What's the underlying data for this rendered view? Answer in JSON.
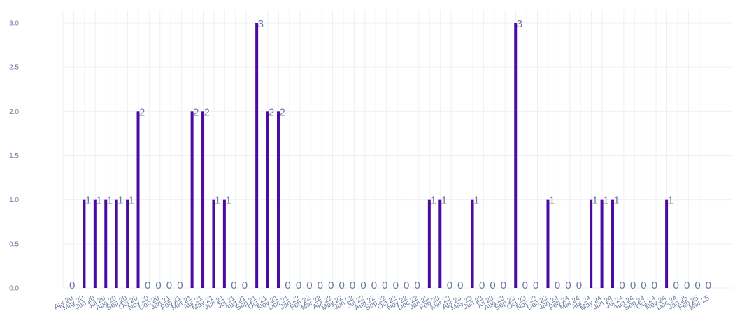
{
  "colors": {
    "bar": "#4b0aa1",
    "text": "#6b7aa1",
    "grid": "#eef0f5"
  },
  "chart_data": {
    "type": "bar",
    "grid": true,
    "legend": "none",
    "ylim": [
      0,
      3
    ],
    "yticks": [
      "0.0",
      "0.5",
      "1.0",
      "1.5",
      "2.0",
      "2.5",
      "3.0"
    ],
    "categories": [
      "Apr 20",
      "May 20",
      "Jun 20",
      "Jul 20",
      "Aug 20",
      "Sep 20",
      "Oct 20",
      "Nov 20",
      "Dec 20",
      "Jan 21",
      "Feb 21",
      "Mar 21",
      "Apr 21",
      "May 21",
      "Jun 21",
      "Jul 21",
      "Aug 21",
      "Sep 21",
      "Oct 21",
      "Nov 21",
      "Dec 21",
      "Jan 22",
      "Feb 22",
      "Mar 22",
      "Apr 22",
      "May 22",
      "Jun 22",
      "Jul 22",
      "Aug 22",
      "Sep 22",
      "Oct 22",
      "Nov 22",
      "Dec 22",
      "Jan 23",
      "Feb 23",
      "Mar 23",
      "Apr 23",
      "May 23",
      "Jun 23",
      "Jul 23",
      "Aug 23",
      "Sep 23",
      "Oct 23",
      "Nov 23",
      "Dec 23",
      "Jan 24",
      "Feb 24",
      "Mar 24",
      "Apr 24",
      "May 24",
      "Jun 24",
      "Jul 24",
      "Aug 24",
      "Sep 24",
      "Oct 24",
      "Nov 24",
      "Dec 24",
      "Jan 25",
      "Feb 25",
      "Mar 25"
    ],
    "values": [
      0,
      1,
      1,
      1,
      1,
      1,
      2,
      0,
      0,
      0,
      0,
      2,
      2,
      1,
      1,
      0,
      0,
      3,
      2,
      2,
      0,
      0,
      0,
      0,
      0,
      0,
      0,
      0,
      0,
      0,
      0,
      0,
      0,
      1,
      1,
      0,
      0,
      1,
      0,
      0,
      0,
      3,
      0,
      0,
      1,
      0,
      0,
      0,
      1,
      1,
      1,
      0,
      0,
      0,
      0,
      1,
      0,
      0,
      0,
      0
    ]
  }
}
